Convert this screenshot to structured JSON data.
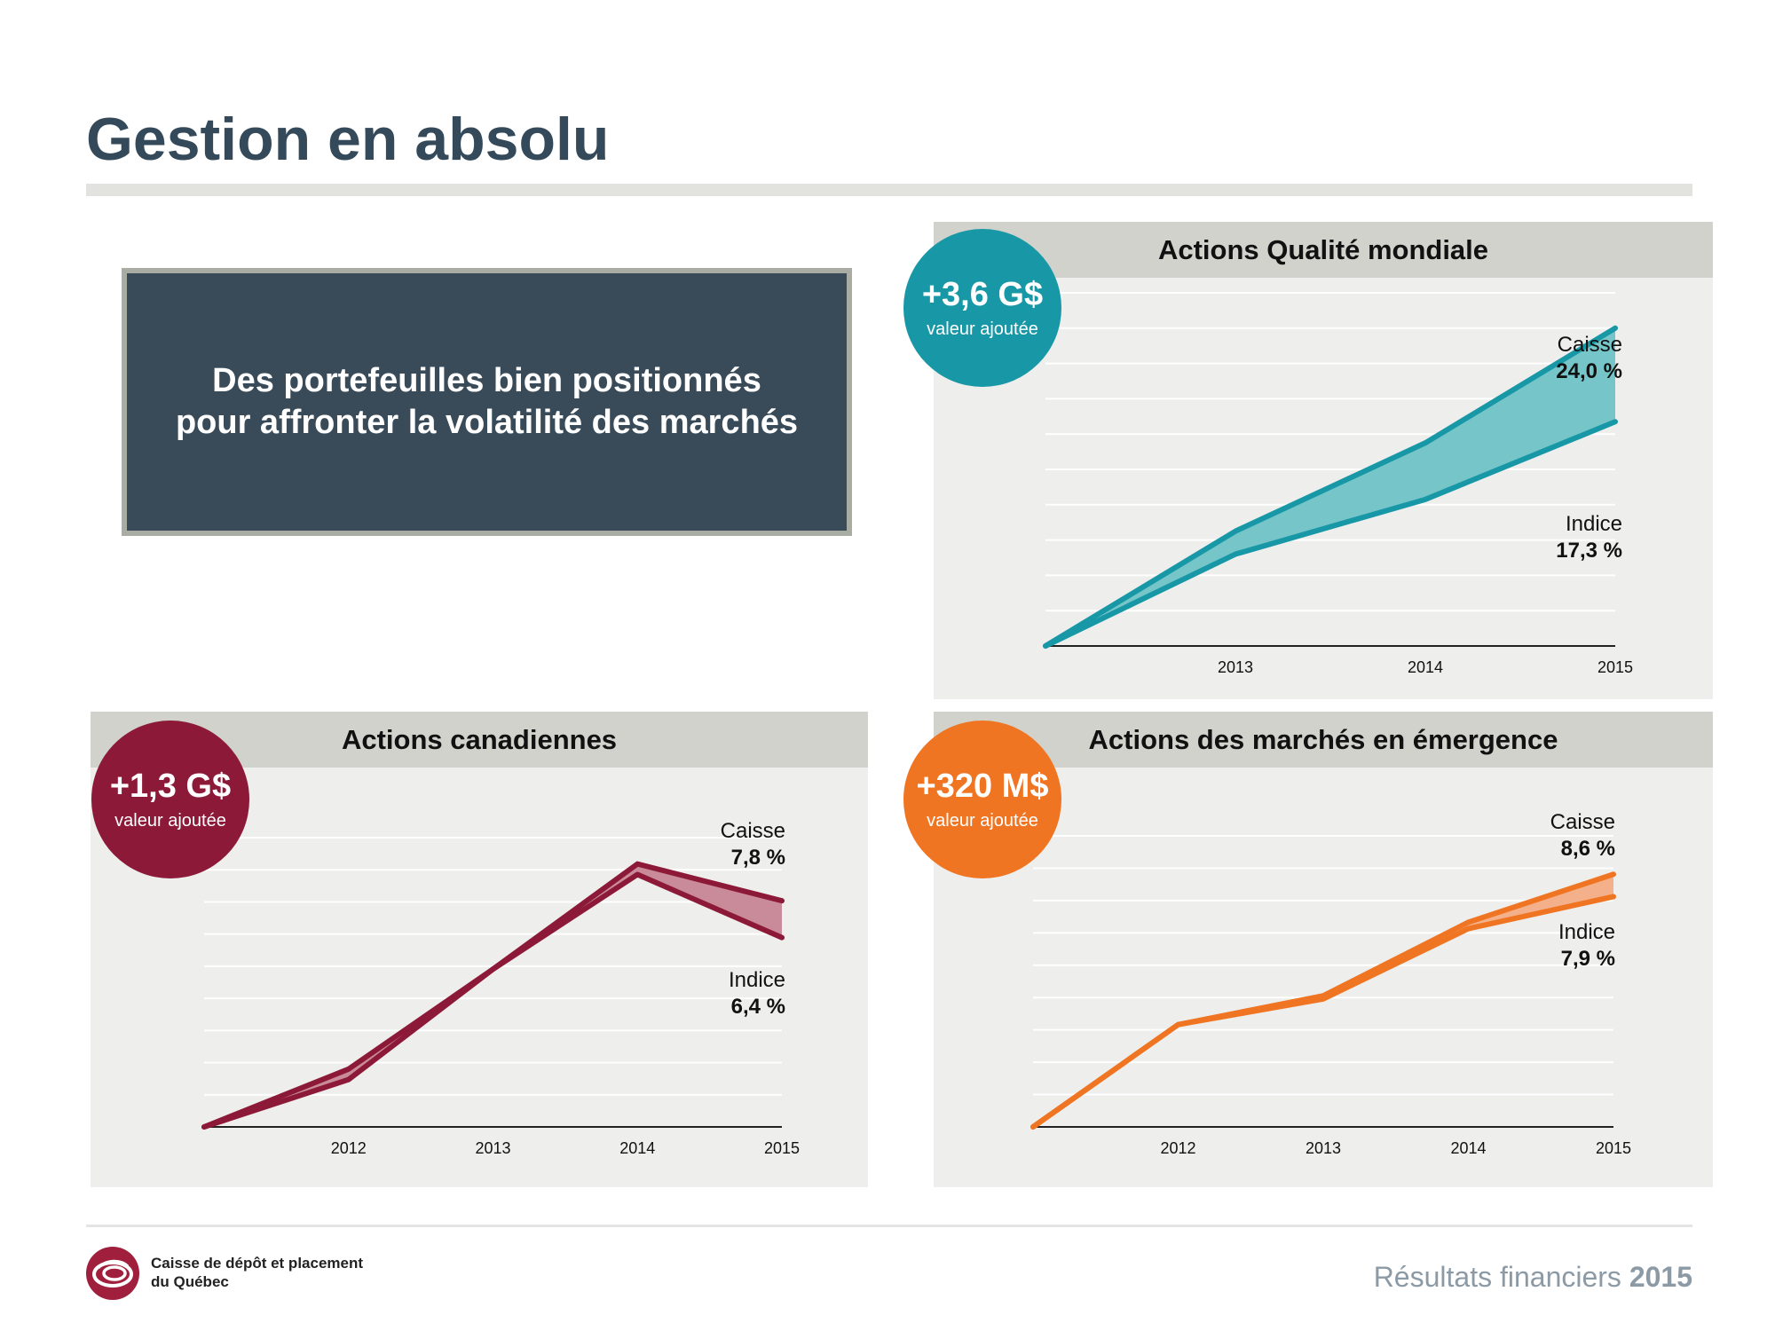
{
  "page": {
    "title": "Gestion en absolu",
    "callout_lines": [
      "Des portefeuilles bien positionnés",
      "pour affronter la volatilité des marchés"
    ]
  },
  "footer": {
    "org_line1": "Caisse de dépôt et placement",
    "org_line2": "du Québec",
    "report_label": "Résultats financiers",
    "report_year": "2015",
    "logo_icon": "cdpq-logo-icon",
    "logo_color": "#a01f3c"
  },
  "panels": {
    "global": {
      "title": "Actions Qualité mondiale",
      "badge_value": "+3,6 G$",
      "badge_caption": "valeur ajoutée",
      "color": "#1898a6",
      "fill_color": "#75c5c9"
    },
    "canadian": {
      "title": "Actions canadiennes",
      "badge_value": "+1,3 G$",
      "badge_caption": "valeur ajoutée",
      "color": "#8c1938",
      "fill_color": "#c98b99"
    },
    "emerging": {
      "title": "Actions des marchés en émergence",
      "badge_value": "+320 M$",
      "badge_caption": "valeur ajoutée",
      "color": "#f07523",
      "fill_color": "#f4b08a"
    }
  },
  "chart_data": [
    {
      "id": "global",
      "type": "area",
      "title": "Actions Qualité mondiale",
      "categories": [
        "",
        "2013",
        "2014",
        "2015"
      ],
      "series": [
        {
          "name": "Caisse",
          "label": "24,0 %",
          "values": [
            0,
            6.5,
            11.5,
            18.0
          ]
        },
        {
          "name": "Indice",
          "label": "17,3 %",
          "values": [
            0,
            5.2,
            8.3,
            12.7
          ]
        }
      ],
      "ylim": [
        0,
        20
      ],
      "grid": true
    },
    {
      "id": "canadian",
      "type": "area",
      "title": "Actions canadiennes",
      "categories": [
        "",
        "2012",
        "2013",
        "2014",
        "2015"
      ],
      "series": [
        {
          "name": "Caisse",
          "label": "7,8 %",
          "values": [
            0,
            1.1,
            3.0,
            5.0,
            4.3
          ]
        },
        {
          "name": "Indice",
          "label": "6,4 %",
          "values": [
            0,
            0.9,
            3.0,
            4.8,
            3.6
          ]
        }
      ],
      "ylim": [
        0,
        5.5
      ],
      "grid": true
    },
    {
      "id": "emerging",
      "type": "area",
      "title": "Actions des marchés en émergence",
      "categories": [
        "",
        "2012",
        "2013",
        "2014",
        "2015"
      ],
      "series": [
        {
          "name": "Caisse",
          "label": "8,6 %",
          "values": [
            0,
            3.2,
            4.1,
            6.4,
            7.9
          ]
        },
        {
          "name": "Indice",
          "label": "7,9 %",
          "values": [
            0,
            3.2,
            4.0,
            6.2,
            7.2
          ]
        }
      ],
      "ylim": [
        0,
        9.1
      ],
      "grid": true
    }
  ]
}
